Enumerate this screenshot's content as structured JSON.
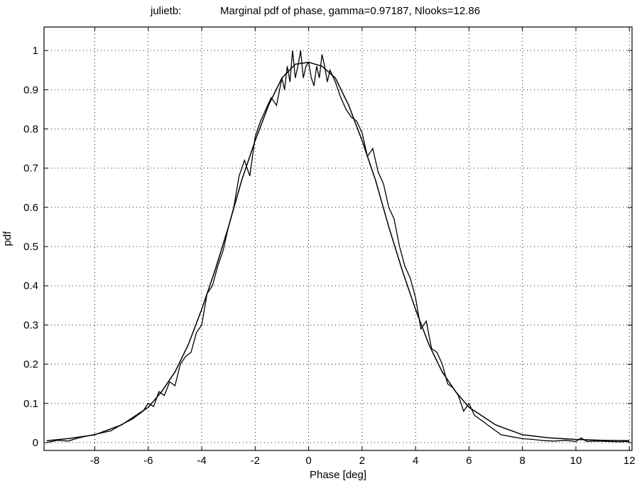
{
  "chart_data": {
    "type": "line",
    "title_prefix": "julietb:",
    "title": "Marginal pdf of phase, gamma=0.97187, Nlooks=12.86",
    "xlabel": "Phase [deg]",
    "ylabel": "pdf",
    "xlim": [
      -9.9,
      12.1
    ],
    "ylim": [
      -0.02,
      1.06
    ],
    "xticks": [
      -8,
      -6,
      -4,
      -2,
      0,
      2,
      4,
      6,
      8,
      10,
      12
    ],
    "xtick_labels": [
      "-8",
      "-6",
      "-4",
      "-2",
      "0",
      "2",
      "4",
      "6",
      "8",
      "10",
      "12"
    ],
    "yticks": [
      0,
      0.1,
      0.2,
      0.3,
      0.4,
      0.5,
      0.6,
      0.7,
      0.8,
      0.9,
      1
    ],
    "ytick_labels": [
      "0",
      "0.1",
      "0.2",
      "0.3",
      "0.4",
      "0.5",
      "0.6",
      "0.7",
      "0.8",
      "0.9",
      "1"
    ],
    "grid": true,
    "series": [
      {
        "role": "empirical histogram",
        "x": [
          -9.8,
          -9.4,
          -9.0,
          -8.6,
          -8.2,
          -7.8,
          -7.4,
          -7.0,
          -6.6,
          -6.2,
          -6.0,
          -5.8,
          -5.6,
          -5.4,
          -5.2,
          -5.0,
          -4.8,
          -4.6,
          -4.4,
          -4.2,
          -4.0,
          -3.8,
          -3.6,
          -3.4,
          -3.2,
          -3.0,
          -2.8,
          -2.6,
          -2.4,
          -2.2,
          -2.0,
          -1.8,
          -1.6,
          -1.4,
          -1.2,
          -1.0,
          -0.9,
          -0.8,
          -0.7,
          -0.6,
          -0.5,
          -0.4,
          -0.3,
          -0.2,
          -0.1,
          0.0,
          0.1,
          0.2,
          0.3,
          0.4,
          0.5,
          0.6,
          0.7,
          0.8,
          1.0,
          1.2,
          1.4,
          1.6,
          1.8,
          2.0,
          2.2,
          2.4,
          2.6,
          2.8,
          3.0,
          3.2,
          3.4,
          3.6,
          3.8,
          4.0,
          4.2,
          4.4,
          4.6,
          4.8,
          5.0,
          5.2,
          5.4,
          5.6,
          5.8,
          6.0,
          6.2,
          6.4,
          6.8,
          7.2,
          7.6,
          8.0,
          8.4,
          8.8,
          9.2,
          9.6,
          10.0,
          10.2,
          10.4,
          10.8,
          11.2,
          11.6,
          12.0
        ],
        "y": [
          0.0,
          0.006,
          0.004,
          0.012,
          0.018,
          0.024,
          0.03,
          0.046,
          0.06,
          0.08,
          0.1,
          0.092,
          0.13,
          0.12,
          0.155,
          0.145,
          0.2,
          0.22,
          0.23,
          0.28,
          0.3,
          0.38,
          0.4,
          0.45,
          0.49,
          0.55,
          0.6,
          0.68,
          0.72,
          0.68,
          0.78,
          0.82,
          0.85,
          0.88,
          0.86,
          0.93,
          0.9,
          0.96,
          0.92,
          1.0,
          0.93,
          0.96,
          1.0,
          0.93,
          0.96,
          0.97,
          0.93,
          0.91,
          0.96,
          0.93,
          0.99,
          0.96,
          0.92,
          0.95,
          0.92,
          0.88,
          0.85,
          0.83,
          0.82,
          0.79,
          0.73,
          0.75,
          0.69,
          0.66,
          0.6,
          0.57,
          0.5,
          0.45,
          0.42,
          0.37,
          0.29,
          0.31,
          0.24,
          0.23,
          0.2,
          0.15,
          0.14,
          0.12,
          0.08,
          0.1,
          0.07,
          0.06,
          0.04,
          0.02,
          0.015,
          0.01,
          0.008,
          0.005,
          0.004,
          0.006,
          0.003,
          0.012,
          0.003,
          0.004,
          0.003,
          0.002,
          0.003
        ]
      },
      {
        "role": "theoretical pdf",
        "x": [
          -9.8,
          -9.0,
          -8.0,
          -7.0,
          -6.0,
          -5.5,
          -5.0,
          -4.5,
          -4.0,
          -3.5,
          -3.0,
          -2.5,
          -2.0,
          -1.5,
          -1.0,
          -0.5,
          0.0,
          0.5,
          1.0,
          1.5,
          2.0,
          2.5,
          3.0,
          3.5,
          4.0,
          4.5,
          5.0,
          5.5,
          6.0,
          7.0,
          8.0,
          9.0,
          10.0,
          11.0,
          12.0
        ],
        "y": [
          0.005,
          0.01,
          0.02,
          0.045,
          0.09,
          0.13,
          0.18,
          0.25,
          0.34,
          0.44,
          0.55,
          0.67,
          0.77,
          0.86,
          0.93,
          0.965,
          0.97,
          0.96,
          0.93,
          0.86,
          0.77,
          0.67,
          0.55,
          0.44,
          0.34,
          0.25,
          0.18,
          0.13,
          0.09,
          0.045,
          0.02,
          0.012,
          0.008,
          0.006,
          0.005
        ]
      }
    ]
  }
}
